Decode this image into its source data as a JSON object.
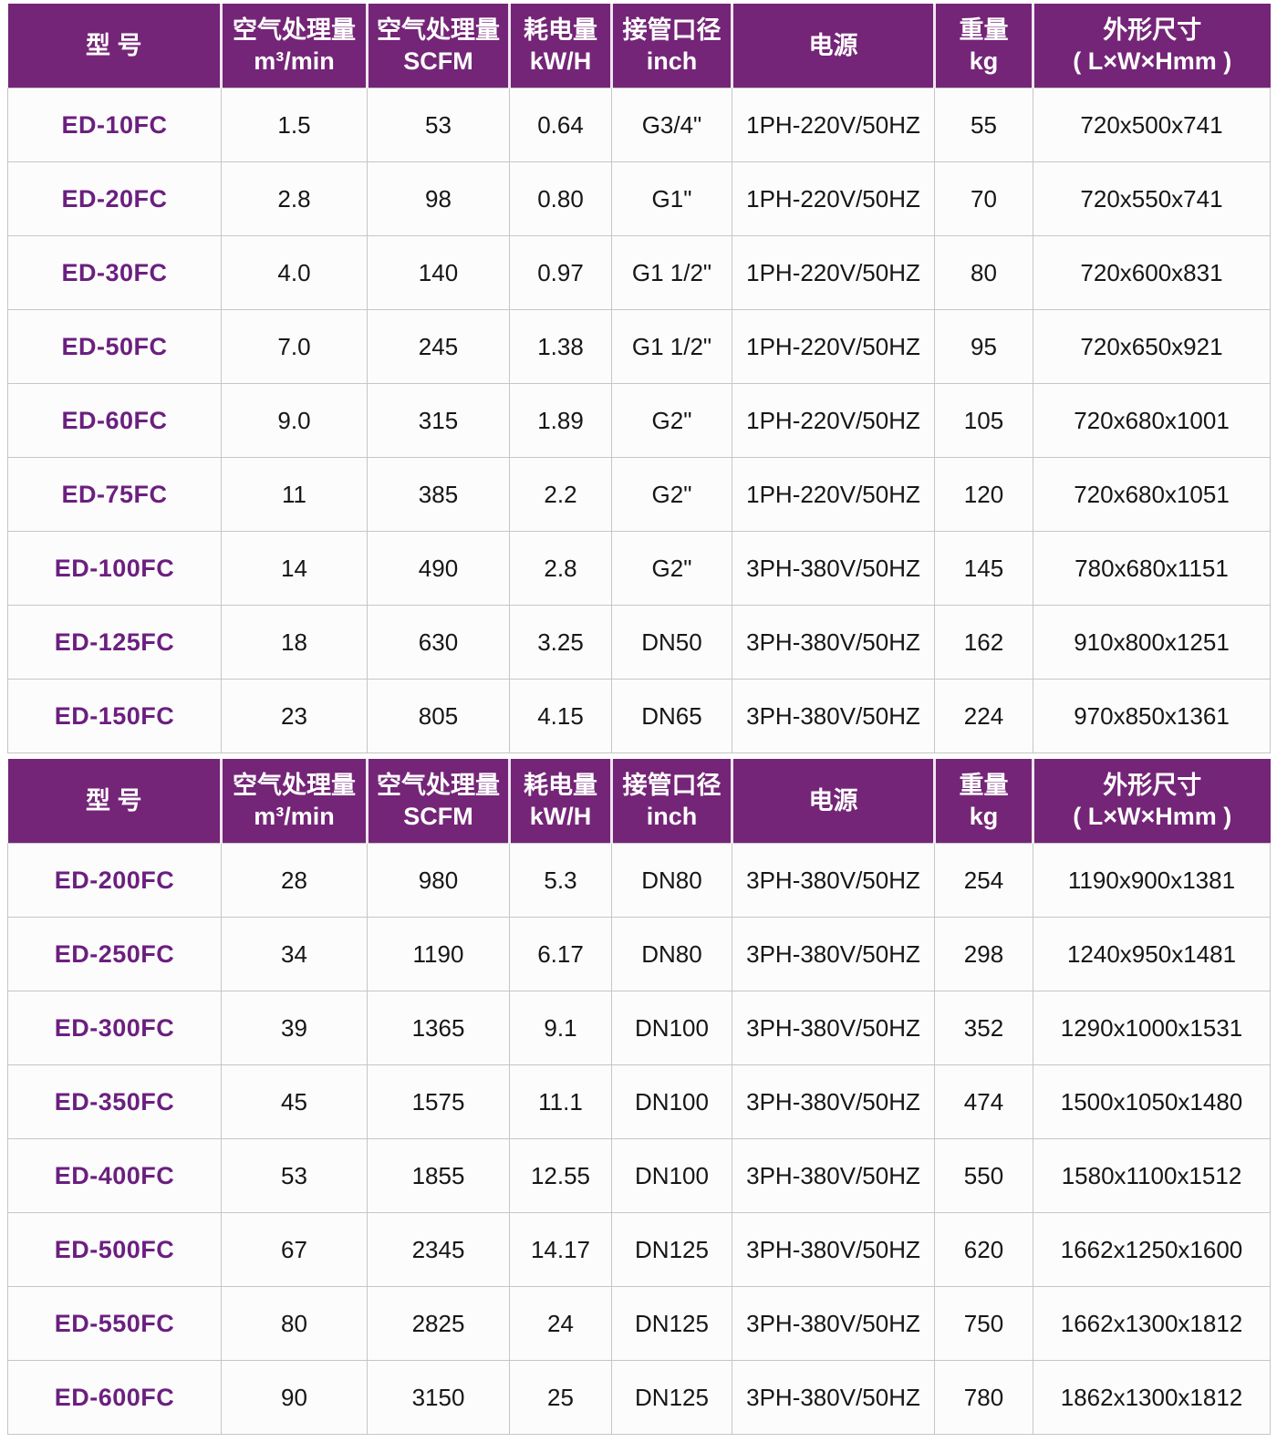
{
  "colors": {
    "header_bg": "#742577",
    "header_text": "#ffffff",
    "model_text": "#6b1f7f",
    "cell_text": "#161616",
    "grid_line": "#c6c6c6",
    "header_separator": "#eee6f0",
    "row_bg": "#fcfcfc"
  },
  "table": {
    "columns": [
      {
        "id": "model",
        "label_lines": [
          "型  号"
        ]
      },
      {
        "id": "capacity-m3",
        "label_lines": [
          "空气处理量",
          "m³/min"
        ]
      },
      {
        "id": "capacity-scfm",
        "label_lines": [
          "空气处理量",
          "SCFM"
        ]
      },
      {
        "id": "power-kwh",
        "label_lines": [
          "耗电量",
          "kW/H"
        ]
      },
      {
        "id": "pipe-size",
        "label_lines": [
          "接管口径",
          "inch"
        ]
      },
      {
        "id": "power-supply",
        "label_lines": [
          "电源"
        ]
      },
      {
        "id": "weight-kg",
        "label_lines": [
          "重量",
          "kg"
        ]
      },
      {
        "id": "dimensions",
        "label_lines": [
          "外形尺寸",
          "( L×W×Hmm )"
        ]
      }
    ],
    "sections": [
      {
        "rows": [
          [
            "ED-10FC",
            "1.5",
            "53",
            "0.64",
            "G3/4\"",
            "1PH-220V/50HZ",
            "55",
            "720x500x741"
          ],
          [
            "ED-20FC",
            "2.8",
            "98",
            "0.80",
            "G1\"",
            "1PH-220V/50HZ",
            "70",
            "720x550x741"
          ],
          [
            "ED-30FC",
            "4.0",
            "140",
            "0.97",
            "G1 1/2\"",
            "1PH-220V/50HZ",
            "80",
            "720x600x831"
          ],
          [
            "ED-50FC",
            "7.0",
            "245",
            "1.38",
            "G1 1/2\"",
            "1PH-220V/50HZ",
            "95",
            "720x650x921"
          ],
          [
            "ED-60FC",
            "9.0",
            "315",
            "1.89",
            "G2\"",
            "1PH-220V/50HZ",
            "105",
            "720x680x1001"
          ],
          [
            "ED-75FC",
            "11",
            "385",
            "2.2",
            "G2\"",
            "1PH-220V/50HZ",
            "120",
            "720x680x1051"
          ],
          [
            "ED-100FC",
            "14",
            "490",
            "2.8",
            "G2\"",
            "3PH-380V/50HZ",
            "145",
            "780x680x1151"
          ],
          [
            "ED-125FC",
            "18",
            "630",
            "3.25",
            "DN50",
            "3PH-380V/50HZ",
            "162",
            "910x800x1251"
          ],
          [
            "ED-150FC",
            "23",
            "805",
            "4.15",
            "DN65",
            "3PH-380V/50HZ",
            "224",
            "970x850x1361"
          ]
        ]
      },
      {
        "rows": [
          [
            "ED-200FC",
            "28",
            "980",
            "5.3",
            "DN80",
            "3PH-380V/50HZ",
            "254",
            "1190x900x1381"
          ],
          [
            "ED-250FC",
            "34",
            "1190",
            "6.17",
            "DN80",
            "3PH-380V/50HZ",
            "298",
            "1240x950x1481"
          ],
          [
            "ED-300FC",
            "39",
            "1365",
            "9.1",
            "DN100",
            "3PH-380V/50HZ",
            "352",
            "1290x1000x1531"
          ],
          [
            "ED-350FC",
            "45",
            "1575",
            "11.1",
            "DN100",
            "3PH-380V/50HZ",
            "474",
            "1500x1050x1480"
          ],
          [
            "ED-400FC",
            "53",
            "1855",
            "12.55",
            "DN100",
            "3PH-380V/50HZ",
            "550",
            "1580x1100x1512"
          ],
          [
            "ED-500FC",
            "67",
            "2345",
            "14.17",
            "DN125",
            "3PH-380V/50HZ",
            "620",
            "1662x1250x1600"
          ],
          [
            "ED-550FC",
            "80",
            "2825",
            "24",
            "DN125",
            "3PH-380V/50HZ",
            "750",
            "1662x1300x1812"
          ],
          [
            "ED-600FC",
            "90",
            "3150",
            "25",
            "DN125",
            "3PH-380V/50HZ",
            "780",
            "1862x1300x1812"
          ]
        ]
      }
    ]
  }
}
